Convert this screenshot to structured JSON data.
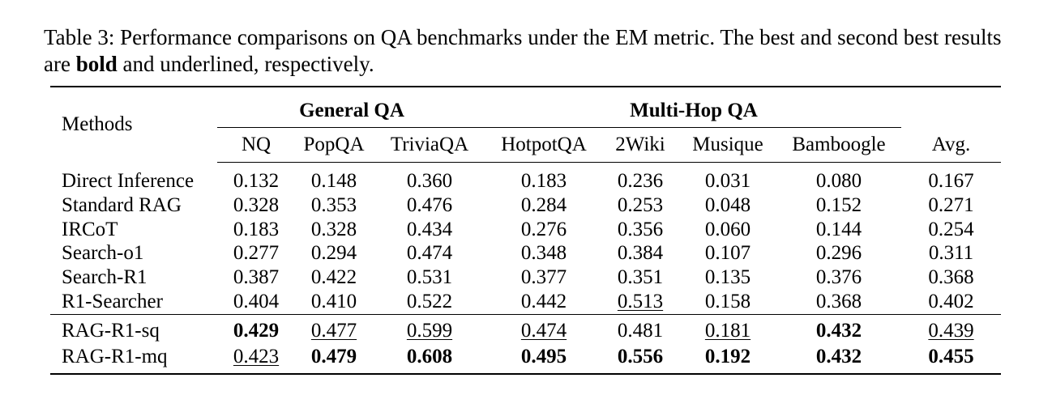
{
  "caption": {
    "prefix": "Table 3: Performance comparisons on QA benchmarks under the EM metric. The best and second best results are ",
    "bold_word": "bold",
    "suffix": " and underlined, respectively."
  },
  "table": {
    "methods_header": "Methods",
    "group_general": "General QA",
    "group_multihop": "Multi-Hop QA",
    "columns": [
      "NQ",
      "PopQA",
      "TriviaQA",
      "HotpotQA",
      "2Wiki",
      "Musique",
      "Bamboogle",
      "Avg."
    ],
    "rows": [
      {
        "method": "Direct Inference",
        "values": [
          "0.132",
          "0.148",
          "0.360",
          "0.183",
          "0.236",
          "0.031",
          "0.080",
          "0.167"
        ]
      },
      {
        "method": "Standard RAG",
        "values": [
          "0.328",
          "0.353",
          "0.476",
          "0.284",
          "0.253",
          "0.048",
          "0.152",
          "0.271"
        ]
      },
      {
        "method": "IRCoT",
        "values": [
          "0.183",
          "0.328",
          "0.434",
          "0.276",
          "0.356",
          "0.060",
          "0.144",
          "0.254"
        ]
      },
      {
        "method": "Search-o1",
        "values": [
          "0.277",
          "0.294",
          "0.474",
          "0.348",
          "0.384",
          "0.107",
          "0.296",
          "0.311"
        ]
      },
      {
        "method": "Search-R1",
        "values": [
          "0.387",
          "0.422",
          "0.531",
          "0.377",
          "0.351",
          "0.135",
          "0.376",
          "0.368"
        ]
      },
      {
        "method": "R1-Searcher",
        "values": [
          "0.404",
          "0.410",
          "0.522",
          "0.442",
          "0.513",
          "0.158",
          "0.368",
          "0.402"
        ]
      },
      {
        "method": "RAG-R1-sq",
        "values": [
          "0.429",
          "0.477",
          "0.599",
          "0.474",
          "0.481",
          "0.181",
          "0.432",
          "0.439"
        ]
      },
      {
        "method": "RAG-R1-mq",
        "values": [
          "0.423",
          "0.479",
          "0.608",
          "0.495",
          "0.556",
          "0.192",
          "0.432",
          "0.455"
        ]
      }
    ]
  }
}
